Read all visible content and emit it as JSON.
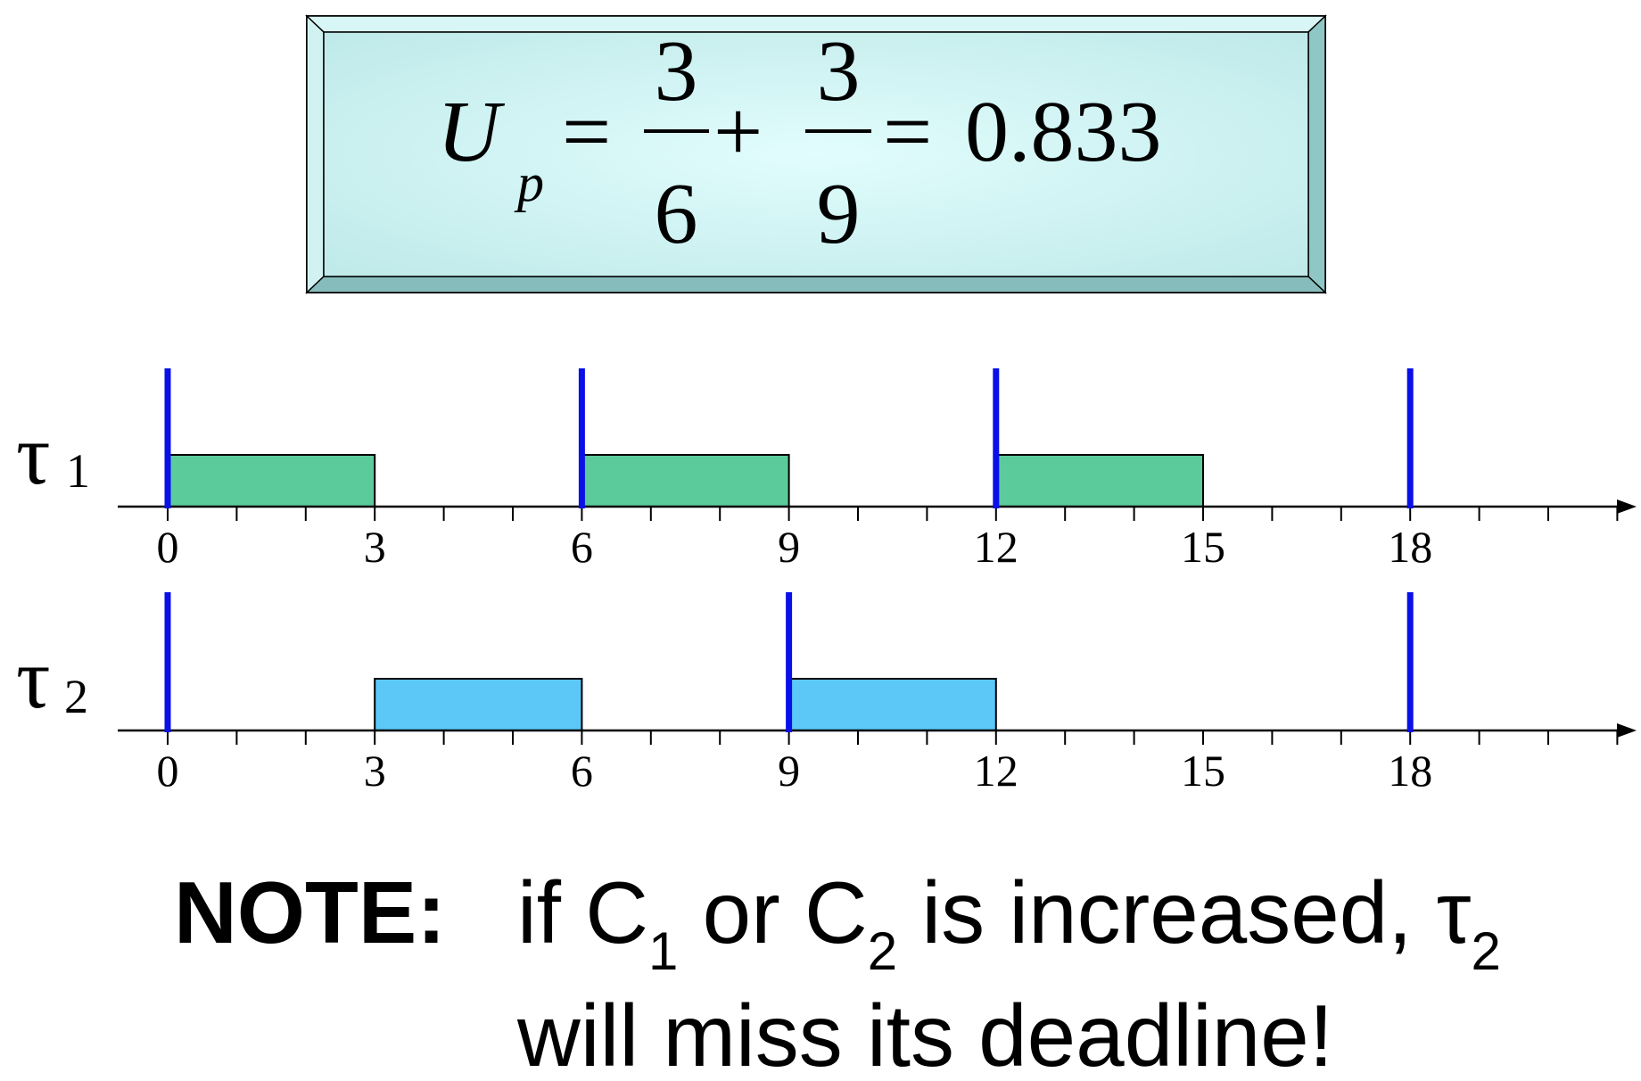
{
  "formula": {
    "lhs_symbol": "U",
    "lhs_subscript": "p",
    "equals": "=",
    "plus": "+",
    "term1": {
      "numerator": "3",
      "denominator": "6"
    },
    "term2": {
      "numerator": "3",
      "denominator": "9"
    },
    "result": "0.833"
  },
  "timeline": {
    "tick_labels": [
      "0",
      "3",
      "6",
      "9",
      "12",
      "15",
      "18"
    ],
    "max_time": 21,
    "release_color": "#0a10e8",
    "tasks": [
      {
        "symbol": "τ",
        "subscript": "1",
        "period": 6,
        "releases": [
          0,
          6,
          12,
          18
        ],
        "jobs": [
          {
            "start": 0,
            "end": 3
          },
          {
            "start": 6,
            "end": 9
          },
          {
            "start": 12,
            "end": 15
          }
        ],
        "color": "#5ccb9c"
      },
      {
        "symbol": "τ",
        "subscript": "2",
        "period": 9,
        "releases": [
          0,
          9,
          18
        ],
        "jobs": [
          {
            "start": 3,
            "end": 6
          },
          {
            "start": 9,
            "end": 12
          }
        ],
        "color": "#5bc8f8"
      }
    ]
  },
  "note": {
    "label": "NOTE:",
    "text_1": "if C",
    "sub_1": "1",
    "text_2": " or C",
    "sub_2": "2",
    "text_3": " is increased, τ",
    "sub_3": "2",
    "line_2": "will miss its deadline!"
  },
  "colors": {
    "formula_box": "#c8f0f0",
    "formula_bevel": "#a8dcdc"
  }
}
